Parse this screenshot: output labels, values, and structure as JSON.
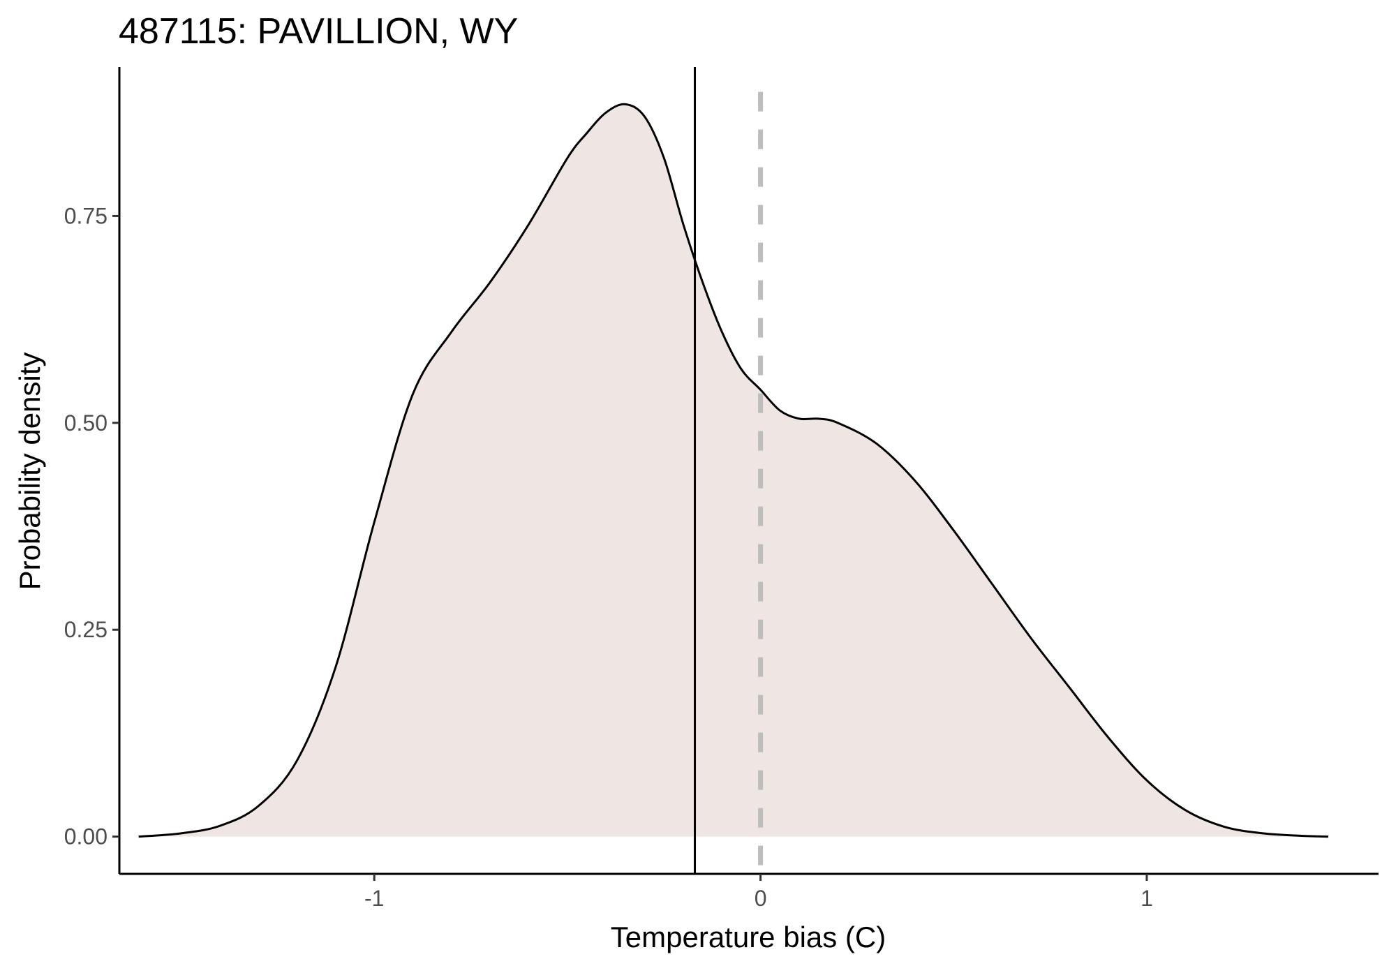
{
  "chart_data": {
    "type": "area",
    "title": "487115: PAVILLION, WY",
    "xlabel": "Temperature bias (C)",
    "ylabel": "Probability density",
    "xlim": [
      -1.66,
      1.6
    ],
    "ylim": [
      -0.045,
      0.93
    ],
    "x_ticks": [
      -1,
      0,
      1
    ],
    "x_tick_labels": [
      "-1",
      "0",
      "1"
    ],
    "y_ticks": [
      0,
      0.25,
      0.5,
      0.75
    ],
    "y_tick_labels": [
      "0.00",
      "0.25",
      "0.50",
      "0.75"
    ],
    "grid": false,
    "legend": "none",
    "fill_color": "#efe6e3",
    "line_color": "#000000",
    "series": [
      {
        "x": [
          -1.61,
          -1.5,
          -1.4,
          -1.3,
          -1.2,
          -1.1,
          -1.0,
          -0.9,
          -0.8,
          -0.7,
          -0.6,
          -0.5,
          -0.45,
          -0.4,
          -0.35,
          -0.3,
          -0.25,
          -0.2,
          -0.15,
          -0.1,
          -0.05,
          0.0,
          0.05,
          0.1,
          0.15,
          0.2,
          0.3,
          0.4,
          0.5,
          0.6,
          0.7,
          0.8,
          0.9,
          1.0,
          1.1,
          1.2,
          1.3,
          1.4,
          1.47
        ],
        "y": [
          0.0,
          0.004,
          0.013,
          0.037,
          0.092,
          0.205,
          0.38,
          0.535,
          0.61,
          0.67,
          0.74,
          0.82,
          0.85,
          0.875,
          0.885,
          0.87,
          0.82,
          0.74,
          0.67,
          0.61,
          0.565,
          0.54,
          0.515,
          0.505,
          0.505,
          0.5,
          0.475,
          0.43,
          0.37,
          0.305,
          0.24,
          0.18,
          0.12,
          0.068,
          0.032,
          0.012,
          0.004,
          0.001,
          0.0
        ]
      }
    ],
    "reference_lines": [
      {
        "x": -0.17,
        "style": "solid",
        "color": "#000000"
      },
      {
        "x": 0,
        "style": "dashed",
        "color": "#bdbdbd"
      }
    ]
  }
}
